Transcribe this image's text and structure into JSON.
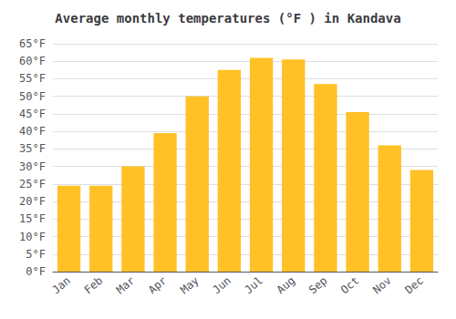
{
  "chart_data": {
    "type": "bar",
    "title": "Average monthly temperatures (°F ) in Kandava",
    "categories": [
      "Jan",
      "Feb",
      "Mar",
      "Apr",
      "May",
      "Jun",
      "Jul",
      "Aug",
      "Sep",
      "Oct",
      "Nov",
      "Dec"
    ],
    "values": [
      24.5,
      24.5,
      30.0,
      39.5,
      50.0,
      57.5,
      61.0,
      60.5,
      53.5,
      45.5,
      36.0,
      29.0
    ],
    "color": "#FFC125",
    "ylim": [
      0,
      65
    ],
    "yticks": [
      {
        "value": 0,
        "label": "0°F"
      },
      {
        "value": 5,
        "label": "5°F"
      },
      {
        "value": 10,
        "label": "10°F"
      },
      {
        "value": 15,
        "label": "15°F"
      },
      {
        "value": 20,
        "label": "20°F"
      },
      {
        "value": 25,
        "label": "25°F"
      },
      {
        "value": 30,
        "label": "30°F"
      },
      {
        "value": 35,
        "label": "35°F"
      },
      {
        "value": 40,
        "label": "40°F"
      },
      {
        "value": 45,
        "label": "45°F"
      },
      {
        "value": 50,
        "label": "50°F"
      },
      {
        "value": 55,
        "label": "55°F"
      },
      {
        "value": 60,
        "label": "60°F"
      },
      {
        "value": 65,
        "label": "65°F"
      }
    ],
    "grid": true
  }
}
